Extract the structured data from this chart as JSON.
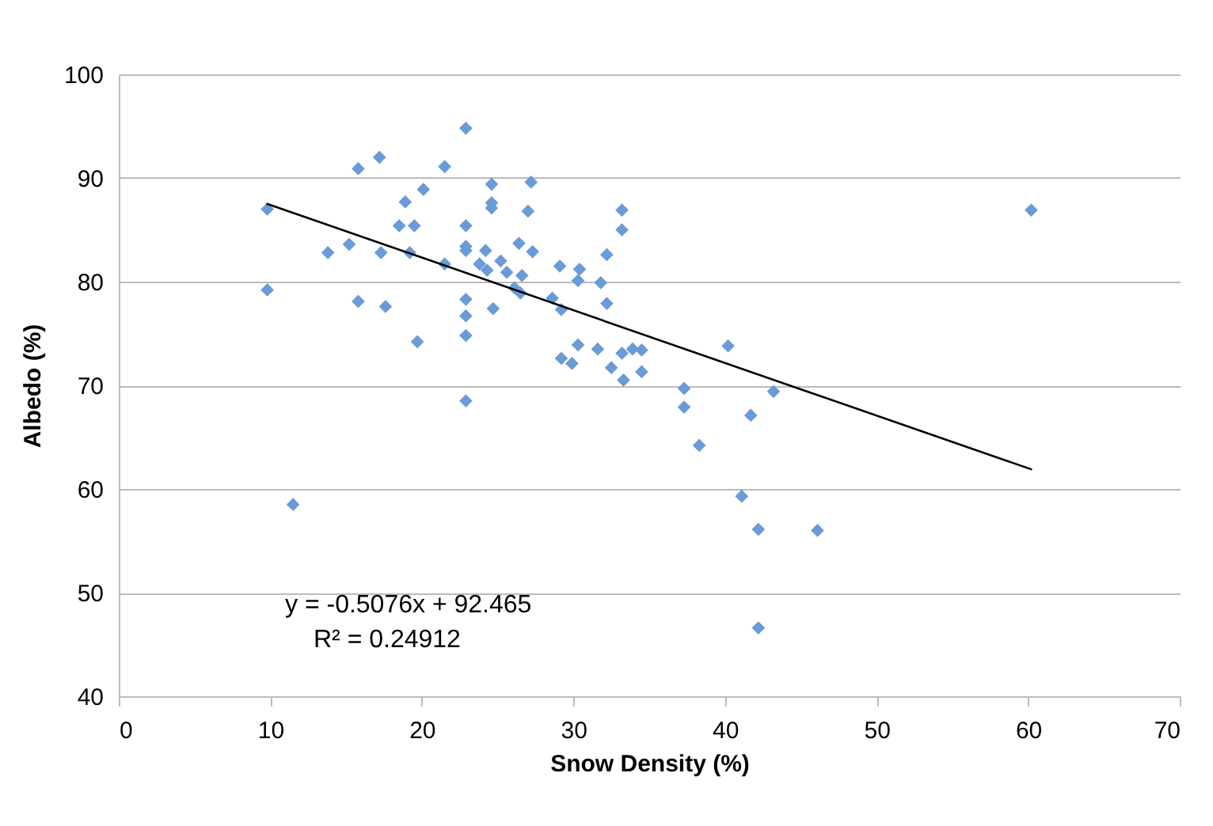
{
  "chart_data": {
    "type": "scatter",
    "xlabel": "Snow Density (%)",
    "ylabel": "Albedo (%)",
    "xlim": [
      0,
      70
    ],
    "xticks": [
      0,
      10,
      20,
      30,
      40,
      50,
      60,
      70
    ],
    "ylim": [
      40,
      100
    ],
    "yticks": [
      40,
      50,
      60,
      70,
      80,
      90,
      100
    ],
    "grid": "y",
    "annotations": [
      "y = -0.5076x + 92.465",
      "R² = 0.24912"
    ],
    "series": [
      {
        "color": "#6a9bd8",
        "marker": "diamond",
        "x": [
          9.8,
          9.8,
          11.5,
          13.8,
          15.2,
          15.8,
          15.8,
          17.2,
          17.3,
          17.6,
          18.5,
          18.9,
          19.2,
          19.5,
          19.7,
          20.1,
          21.5,
          21.5,
          22.9,
          22.9,
          22.9,
          22.9,
          22.9,
          22.9,
          22.9,
          22.9,
          23.8,
          24.2,
          24.3,
          24.6,
          24.6,
          24.6,
          24.7,
          25.2,
          25.6,
          26.1,
          26.4,
          26.5,
          26.6,
          27.0,
          27.2,
          27.3,
          28.6,
          29.1,
          29.2,
          29.2,
          29.9,
          30.3,
          30.3,
          30.4,
          31.6,
          31.8,
          32.2,
          32.2,
          32.5,
          33.2,
          33.2,
          33.2,
          33.3,
          33.9,
          34.5,
          34.5,
          37.3,
          37.3,
          38.3,
          40.2,
          41.1,
          41.7,
          42.2,
          42.2,
          43.2,
          46.1,
          60.2
        ],
        "values": [
          87.0,
          79.2,
          58.5,
          82.8,
          83.6,
          90.9,
          78.1,
          92.0,
          82.8,
          77.6,
          85.4,
          87.7,
          82.8,
          85.4,
          74.2,
          88.9,
          91.1,
          81.7,
          94.8,
          85.4,
          83.4,
          78.3,
          76.7,
          74.8,
          68.5,
          83.0,
          81.7,
          83.0,
          81.1,
          89.4,
          87.6,
          87.1,
          77.4,
          82.0,
          80.9,
          79.4,
          83.7,
          78.9,
          80.6,
          86.8,
          89.6,
          82.9,
          78.4,
          81.5,
          77.3,
          72.6,
          72.1,
          80.1,
          73.9,
          81.2,
          73.5,
          79.9,
          82.6,
          77.9,
          71.7,
          86.9,
          85.0,
          73.1,
          70.5,
          73.5,
          73.4,
          71.3,
          69.7,
          67.9,
          64.2,
          73.8,
          59.3,
          67.1,
          56.1,
          46.6,
          69.4,
          56.0,
          86.9
        ]
      },
      {
        "type": "line",
        "marker": "none",
        "color": "#000000",
        "x": [
          9.8,
          60.2
        ],
        "values": [
          87.5,
          61.9
        ]
      }
    ]
  }
}
